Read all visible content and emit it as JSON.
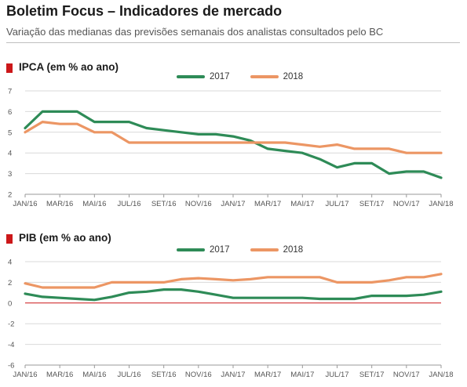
{
  "header": {
    "title": "Boletim Focus – Indicadores de mercado",
    "subtitle": "Variação das medianas das previsões semanais dos analistas consultados pelo BC"
  },
  "colors": {
    "series_2017": "#2e8b57",
    "series_2018": "#ec9664",
    "marker": "#cc1719",
    "zero_line": "#cc1719"
  },
  "chart_data": [
    {
      "type": "line",
      "title": "IPCA (em % ao ano)",
      "x_ticks": [
        "JAN/16",
        "MAR/16",
        "MAI/16",
        "JUL/16",
        "SET/16",
        "NOV/16",
        "JAN/17",
        "MAR/17",
        "MAI/17",
        "JUL/17",
        "SET/17",
        "NOV/17",
        "JAN/18"
      ],
      "y_ticks": [
        2,
        3,
        4,
        5,
        6,
        7
      ],
      "ylim": [
        2,
        7
      ],
      "xlim": [
        "2016-01",
        "2018-01"
      ],
      "grid": "horizontal",
      "legend": "top-center",
      "series": [
        {
          "name": "2017",
          "color": "#2e8b57",
          "x": [
            "2016-01",
            "2016-02",
            "2016-03",
            "2016-04",
            "2016-05",
            "2016-06",
            "2016-07",
            "2016-08",
            "2016-09",
            "2016-10",
            "2016-11",
            "2016-12",
            "2017-01",
            "2017-02",
            "2017-03",
            "2017-04",
            "2017-05",
            "2017-06",
            "2017-07",
            "2017-08",
            "2017-09",
            "2017-10",
            "2017-11",
            "2017-12",
            "2018-01"
          ],
          "y": [
            5.2,
            6.0,
            6.0,
            6.0,
            5.5,
            5.5,
            5.5,
            5.2,
            5.1,
            5.0,
            4.9,
            4.9,
            4.8,
            4.6,
            4.2,
            4.1,
            4.0,
            3.7,
            3.3,
            3.5,
            3.5,
            3.0,
            3.1,
            3.1,
            2.8
          ]
        },
        {
          "name": "2018",
          "color": "#ec9664",
          "x": [
            "2016-01",
            "2016-02",
            "2016-03",
            "2016-04",
            "2016-05",
            "2016-06",
            "2016-07",
            "2016-08",
            "2016-09",
            "2016-10",
            "2016-11",
            "2016-12",
            "2017-01",
            "2017-02",
            "2017-03",
            "2017-04",
            "2017-05",
            "2017-06",
            "2017-07",
            "2017-08",
            "2017-09",
            "2017-10",
            "2017-11",
            "2017-12",
            "2018-01"
          ],
          "y": [
            5.0,
            5.5,
            5.4,
            5.4,
            5.0,
            5.0,
            4.5,
            4.5,
            4.5,
            4.5,
            4.5,
            4.5,
            4.5,
            4.5,
            4.5,
            4.5,
            4.4,
            4.3,
            4.4,
            4.2,
            4.2,
            4.2,
            4.0,
            4.0,
            4.0
          ]
        }
      ]
    },
    {
      "type": "line",
      "title": "PIB (em % ao ano)",
      "x_ticks": [
        "JAN/16",
        "MAR/16",
        "MAI/16",
        "JUL/16",
        "SET/16",
        "NOV/16",
        "JAN/17",
        "MAR/17",
        "MAI/17",
        "JUL/17",
        "SET/17",
        "NOV/17",
        "JAN/18"
      ],
      "y_ticks": [
        -6,
        -4,
        -2,
        0,
        2,
        4
      ],
      "ylim": [
        -6,
        4
      ],
      "xlim": [
        "2016-01",
        "2018-01"
      ],
      "grid": "horizontal",
      "legend": "top-center",
      "series": [
        {
          "name": "2017",
          "color": "#2e8b57",
          "x": [
            "2016-01",
            "2016-02",
            "2016-03",
            "2016-04",
            "2016-05",
            "2016-06",
            "2016-07",
            "2016-08",
            "2016-09",
            "2016-10",
            "2016-11",
            "2016-12",
            "2017-01",
            "2017-02",
            "2017-03",
            "2017-04",
            "2017-05",
            "2017-06",
            "2017-07",
            "2017-08",
            "2017-09",
            "2017-10",
            "2017-11",
            "2017-12",
            "2018-01"
          ],
          "y": [
            0.9,
            0.6,
            0.5,
            0.4,
            0.3,
            0.6,
            1.0,
            1.1,
            1.3,
            1.3,
            1.1,
            0.8,
            0.5,
            0.5,
            0.5,
            0.5,
            0.5,
            0.4,
            0.4,
            0.4,
            0.7,
            0.7,
            0.7,
            0.8,
            1.1
          ]
        },
        {
          "name": "2018",
          "color": "#ec9664",
          "x": [
            "2016-01",
            "2016-02",
            "2016-03",
            "2016-04",
            "2016-05",
            "2016-06",
            "2016-07",
            "2016-08",
            "2016-09",
            "2016-10",
            "2016-11",
            "2016-12",
            "2017-01",
            "2017-02",
            "2017-03",
            "2017-04",
            "2017-05",
            "2017-06",
            "2017-07",
            "2017-08",
            "2017-09",
            "2017-10",
            "2017-11",
            "2017-12",
            "2018-01"
          ],
          "y": [
            1.9,
            1.5,
            1.5,
            1.5,
            1.5,
            2.0,
            2.0,
            2.0,
            2.0,
            2.3,
            2.4,
            2.3,
            2.2,
            2.3,
            2.5,
            2.5,
            2.5,
            2.5,
            2.0,
            2.0,
            2.0,
            2.2,
            2.5,
            2.5,
            2.8
          ]
        }
      ]
    }
  ]
}
